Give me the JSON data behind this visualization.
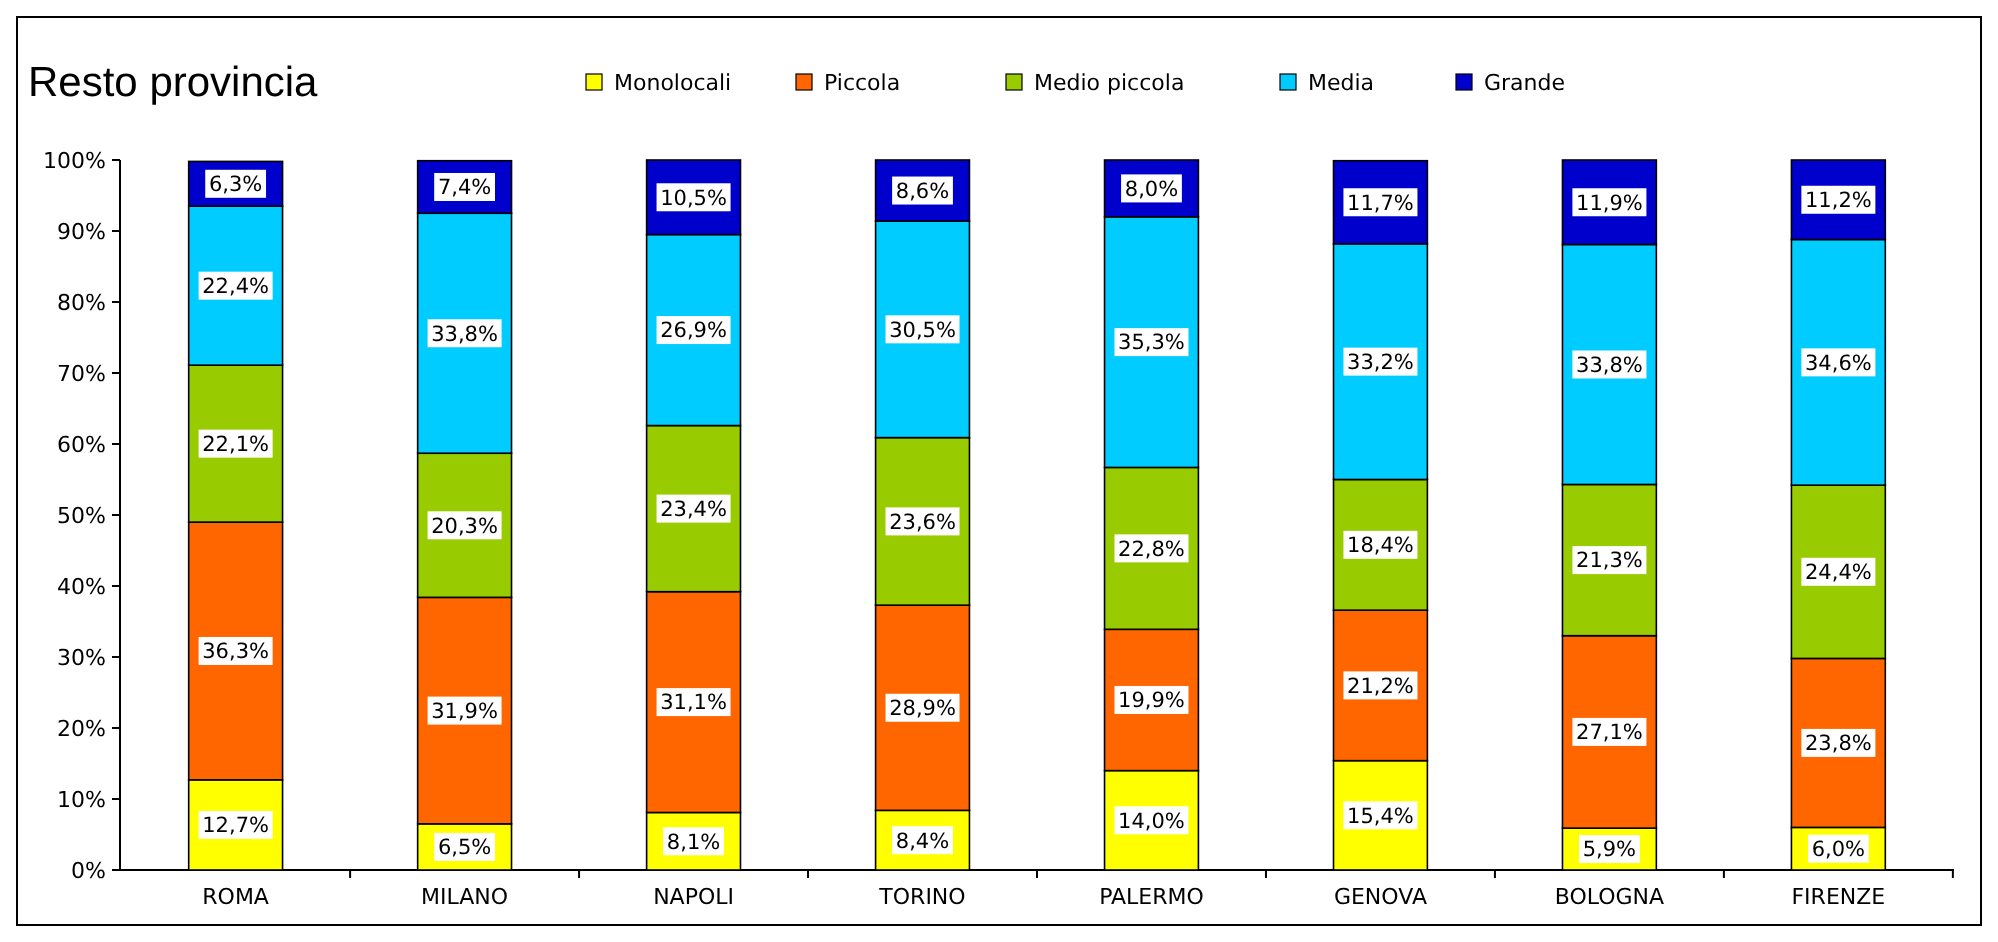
{
  "chart_data": {
    "type": "bar",
    "title": "Resto provincia",
    "stacked": true,
    "legend": "top",
    "grid": false,
    "categories": [
      "ROMA",
      "MILANO",
      "NAPOLI",
      "TORINO",
      "PALERMO",
      "GENOVA",
      "BOLOGNA",
      "FIRENZE"
    ],
    "ylim": [
      0,
      100
    ],
    "yticks": [
      {
        "value": 0,
        "label": "0%"
      },
      {
        "value": 10,
        "label": "10%"
      },
      {
        "value": 20,
        "label": "20%"
      },
      {
        "value": 30,
        "label": "30%"
      },
      {
        "value": 40,
        "label": "40%"
      },
      {
        "value": 50,
        "label": "50%"
      },
      {
        "value": 60,
        "label": "60%"
      },
      {
        "value": 70,
        "label": "70%"
      },
      {
        "value": 80,
        "label": "80%"
      },
      {
        "value": 90,
        "label": "90%"
      },
      {
        "value": 100,
        "label": "100%"
      }
    ],
    "series": [
      {
        "name": "Monolocali",
        "color": "#ffff00",
        "values": [
          12.7,
          6.5,
          8.1,
          8.4,
          14.0,
          15.4,
          5.9,
          6.0
        ],
        "value_labels": [
          "12,7%",
          "6,5%",
          "8,1%",
          "8,4%",
          "14,0%",
          "15,4%",
          "5,9%",
          "6,0%"
        ]
      },
      {
        "name": "Piccola",
        "color": "#ff6600",
        "values": [
          36.3,
          31.9,
          31.1,
          28.9,
          19.9,
          21.2,
          27.1,
          23.8
        ],
        "value_labels": [
          "36,3%",
          "31,9%",
          "31,1%",
          "28,9%",
          "19,9%",
          "21,2%",
          "27,1%",
          "23,8%"
        ]
      },
      {
        "name": "Medio piccola",
        "color": "#99cc00",
        "values": [
          22.1,
          20.3,
          23.4,
          23.6,
          22.8,
          18.4,
          21.3,
          24.4
        ],
        "value_labels": [
          "22,1%",
          "20,3%",
          "23,4%",
          "23,6%",
          "22,8%",
          "18,4%",
          "21,3%",
          "24,4%"
        ]
      },
      {
        "name": "Media",
        "color": "#00ccff",
        "values": [
          22.4,
          33.8,
          26.9,
          30.5,
          35.3,
          33.2,
          33.8,
          34.6
        ],
        "value_labels": [
          "22,4%",
          "33,8%",
          "26,9%",
          "30,5%",
          "35,3%",
          "33,2%",
          "33,8%",
          "34,6%"
        ]
      },
      {
        "name": "Grande",
        "color": "#0000cc",
        "values": [
          6.3,
          7.4,
          10.5,
          8.6,
          8.0,
          11.7,
          11.9,
          11.2
        ],
        "value_labels": [
          "6,3%",
          "7,4%",
          "10,5%",
          "8,6%",
          "8,0%",
          "11,7%",
          "11,9%",
          "11,2%"
        ]
      }
    ]
  }
}
